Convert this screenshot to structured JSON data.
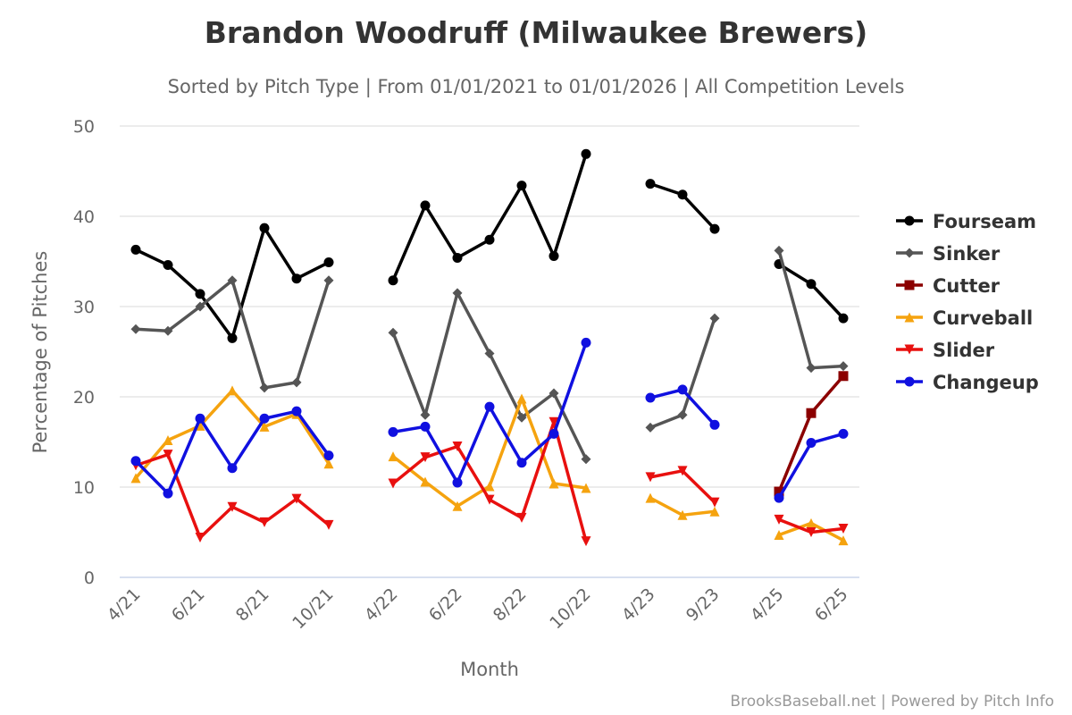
{
  "chart_data": {
    "type": "line",
    "title": "Brandon Woodruff (Milwaukee Brewers)",
    "subtitle": "Sorted by Pitch Type | From 01/01/2021 to 01/01/2026 | All Competition Levels",
    "xlabel": "Month",
    "ylabel": "Percentage of Pitches",
    "ylim": [
      0,
      50
    ],
    "yticks": [
      0,
      10,
      20,
      30,
      40,
      50
    ],
    "grid": true,
    "legend_position": "right",
    "categories": [
      "4/21",
      "",
      "6/21",
      "",
      "8/21",
      "",
      "10/21",
      "",
      "4/22",
      "",
      "6/22",
      "",
      "8/22",
      "",
      "10/22",
      "",
      "4/23",
      "",
      "9/23",
      "",
      "4/25",
      "",
      "6/25"
    ],
    "series": [
      {
        "name": "Fourseam",
        "color": "#000000",
        "marker": "circle",
        "values": [
          36.3,
          34.6,
          31.4,
          26.5,
          38.7,
          33.1,
          34.9,
          null,
          32.9,
          41.2,
          35.4,
          37.4,
          43.4,
          35.6,
          46.9,
          null,
          43.6,
          42.4,
          38.6,
          null,
          34.7,
          32.5,
          28.7
        ]
      },
      {
        "name": "Sinker",
        "color": "#555555",
        "marker": "diamond",
        "values": [
          27.5,
          27.3,
          30.0,
          32.9,
          21.0,
          21.6,
          32.9,
          null,
          27.1,
          18.0,
          31.5,
          24.8,
          17.7,
          20.4,
          13.1,
          null,
          16.6,
          18.0,
          28.7,
          null,
          36.2,
          23.2,
          23.4
        ]
      },
      {
        "name": "Cutter",
        "color": "#8b0000",
        "marker": "square",
        "values": [
          null,
          null,
          null,
          null,
          null,
          null,
          null,
          null,
          null,
          null,
          null,
          null,
          null,
          null,
          null,
          null,
          null,
          null,
          null,
          null,
          9.5,
          18.2,
          22.3
        ]
      },
      {
        "name": "Curveball",
        "color": "#f5a30f",
        "marker": "triangle",
        "values": [
          11.0,
          15.2,
          16.8,
          20.7,
          16.7,
          18.1,
          12.6,
          null,
          13.4,
          10.6,
          7.9,
          10.1,
          19.8,
          10.4,
          9.9,
          null,
          8.8,
          6.9,
          7.3,
          null,
          4.7,
          6.0,
          4.1
        ]
      },
      {
        "name": "Slider",
        "color": "#e8100f",
        "marker": "triangle-down",
        "values": [
          12.4,
          13.6,
          4.4,
          7.8,
          6.1,
          8.7,
          5.8,
          null,
          10.4,
          13.3,
          14.5,
          8.6,
          6.6,
          17.2,
          4.0,
          null,
          11.1,
          11.8,
          8.3,
          null,
          6.4,
          5.0,
          5.4
        ]
      },
      {
        "name": "Changeup",
        "color": "#1010e0",
        "marker": "circle",
        "values": [
          12.9,
          9.3,
          17.6,
          12.1,
          17.6,
          18.4,
          13.5,
          null,
          16.1,
          16.7,
          10.5,
          18.9,
          12.7,
          15.9,
          26.0,
          null,
          19.9,
          20.8,
          16.9,
          null,
          8.8,
          14.9,
          15.9
        ]
      }
    ]
  },
  "credit": "BrooksBaseball.net | Powered by Pitch Info"
}
